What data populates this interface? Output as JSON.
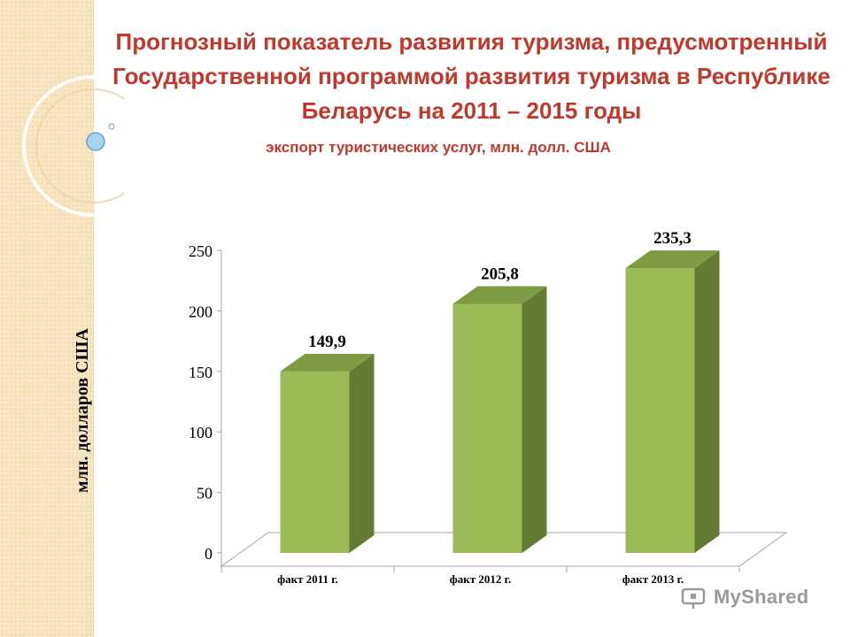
{
  "slide": {
    "title": "Прогнозный показатель развития туризма, предусмотренный Государственной программой развития туризма в Республике Беларусь на 2011 – 2015 годы",
    "subtitle": "экспорт туристических услуг, млн. долл. США"
  },
  "chart_data": {
    "type": "bar",
    "categories": [
      "факт 2011 г.",
      "факт 2012 г.",
      "факт 2013 г."
    ],
    "values": [
      149.9,
      205.8,
      235.3
    ],
    "data_labels": [
      "149,9",
      "205,8",
      "235,3"
    ],
    "ylabel": "млн. долларов США",
    "ylim": [
      0,
      250
    ],
    "yticks": [
      0,
      50,
      100,
      150,
      200,
      250
    ],
    "grid": false,
    "style": "3d-column",
    "colors": {
      "front": "#9bbb59",
      "side": "#647b36",
      "top": "#7e9a43"
    }
  },
  "watermark": {
    "text": "MyShared"
  }
}
